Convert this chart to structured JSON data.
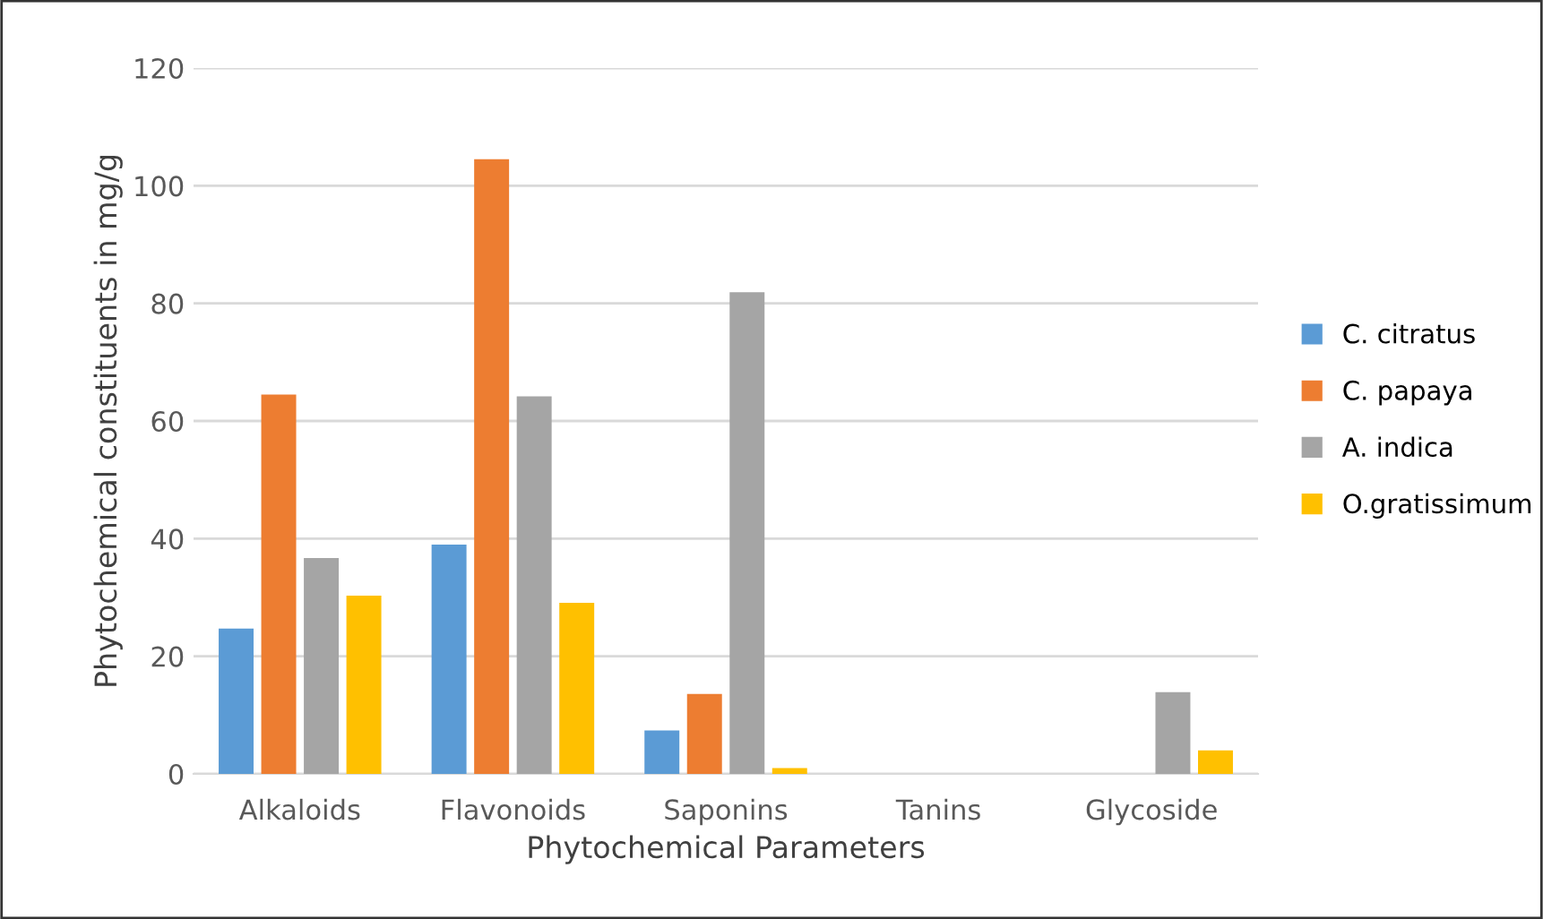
{
  "chart_data": {
    "type": "bar",
    "xlabel": "Phytochemical Parameters",
    "ylabel": "Phytochemical constituents in mg/g",
    "categories": [
      "Alkaloids",
      "Flavonoids",
      "Saponins",
      "Tanins",
      "Glycoside"
    ],
    "series": [
      {
        "name": "C. citratus",
        "color": "#5b9bd5",
        "values": [
          24.7,
          39.0,
          7.4,
          0,
          0
        ]
      },
      {
        "name": "C. papaya",
        "color": "#ed7d31",
        "values": [
          64.5,
          104.5,
          13.6,
          0,
          0
        ]
      },
      {
        "name": "A. indica",
        "color": "#a5a5a5",
        "values": [
          36.7,
          64.2,
          81.9,
          0,
          13.9
        ]
      },
      {
        "name": "O.gratissimum",
        "color": "#ffc000",
        "values": [
          30.3,
          29.1,
          1.0,
          0,
          4.0
        ]
      }
    ],
    "ylim": [
      0,
      120
    ],
    "yticks": [
      0,
      20,
      40,
      60,
      80,
      100,
      120
    ],
    "grid": "y",
    "legend": "right"
  }
}
